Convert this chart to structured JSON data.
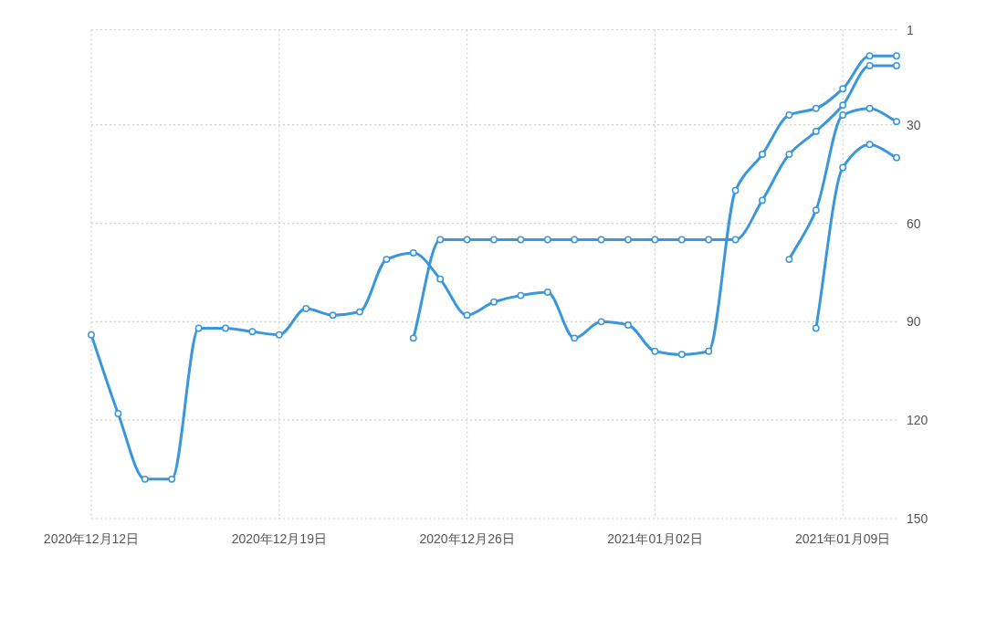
{
  "chart_data": {
    "type": "line",
    "xlim": [
      "2020-12-12",
      "2021-01-11"
    ],
    "xticks": [
      {
        "value": "2020-12-12",
        "label": "2020年12月12日"
      },
      {
        "value": "2020-12-19",
        "label": "2020年12月19日"
      },
      {
        "value": "2020-12-26",
        "label": "2020年12月26日"
      },
      {
        "value": "2021-01-02",
        "label": "2021年01月02日"
      },
      {
        "value": "2021-01-09",
        "label": "2021年01月09日"
      }
    ],
    "ylim": [
      150,
      1
    ],
    "yticks": [
      1,
      30,
      60,
      90,
      120,
      150
    ],
    "grid": true,
    "marker": "circle",
    "line_style": "solid",
    "series": [
      {
        "color": "#3a97dc",
        "x": [
          "2020-12-12",
          "2020-12-13",
          "2020-12-14",
          "2020-12-15",
          "2020-12-16",
          "2020-12-17",
          "2020-12-18",
          "2020-12-19",
          "2020-12-20",
          "2020-12-21",
          "2020-12-22",
          "2020-12-23",
          "2020-12-24",
          "2020-12-25",
          "2020-12-26",
          "2020-12-27",
          "2020-12-28",
          "2020-12-29",
          "2020-12-30",
          "2020-12-31",
          "2021-01-01",
          "2021-01-02",
          "2021-01-03",
          "2021-01-04",
          "2021-01-05",
          "2021-01-06",
          "2021-01-07",
          "2021-01-08",
          "2021-01-09",
          "2021-01-10",
          "2021-01-11"
        ],
        "values": [
          94,
          118,
          138,
          138,
          92,
          92,
          93,
          94,
          86,
          88,
          87,
          71,
          69,
          77,
          88,
          84,
          82,
          81,
          95,
          90,
          91,
          99,
          100,
          99,
          50,
          39,
          27,
          25,
          19,
          9,
          9
        ]
      },
      {
        "color": "#3a97dc",
        "x": [
          "2020-12-24",
          "2020-12-25",
          "2020-12-26",
          "2020-12-27",
          "2020-12-28",
          "2020-12-29",
          "2020-12-30",
          "2020-12-31",
          "2021-01-01",
          "2021-01-02",
          "2021-01-03",
          "2021-01-04",
          "2021-01-05",
          "2021-01-06",
          "2021-01-07",
          "2021-01-08",
          "2021-01-09",
          "2021-01-10",
          "2021-01-11"
        ],
        "values": [
          95,
          65,
          65,
          65,
          65,
          65,
          65,
          65,
          65,
          65,
          65,
          65,
          65,
          53,
          39,
          32,
          24,
          12,
          12
        ]
      },
      {
        "color": "#3a97dc",
        "x": [
          "2021-01-07",
          "2021-01-08",
          "2021-01-09",
          "2021-01-10",
          "2021-01-11"
        ],
        "values": [
          71,
          56,
          27,
          25,
          29
        ]
      },
      {
        "color": "#3a97dc",
        "x": [
          "2021-01-08",
          "2021-01-09",
          "2021-01-10",
          "2021-01-11"
        ],
        "values": [
          92,
          43,
          36,
          40
        ]
      }
    ]
  }
}
